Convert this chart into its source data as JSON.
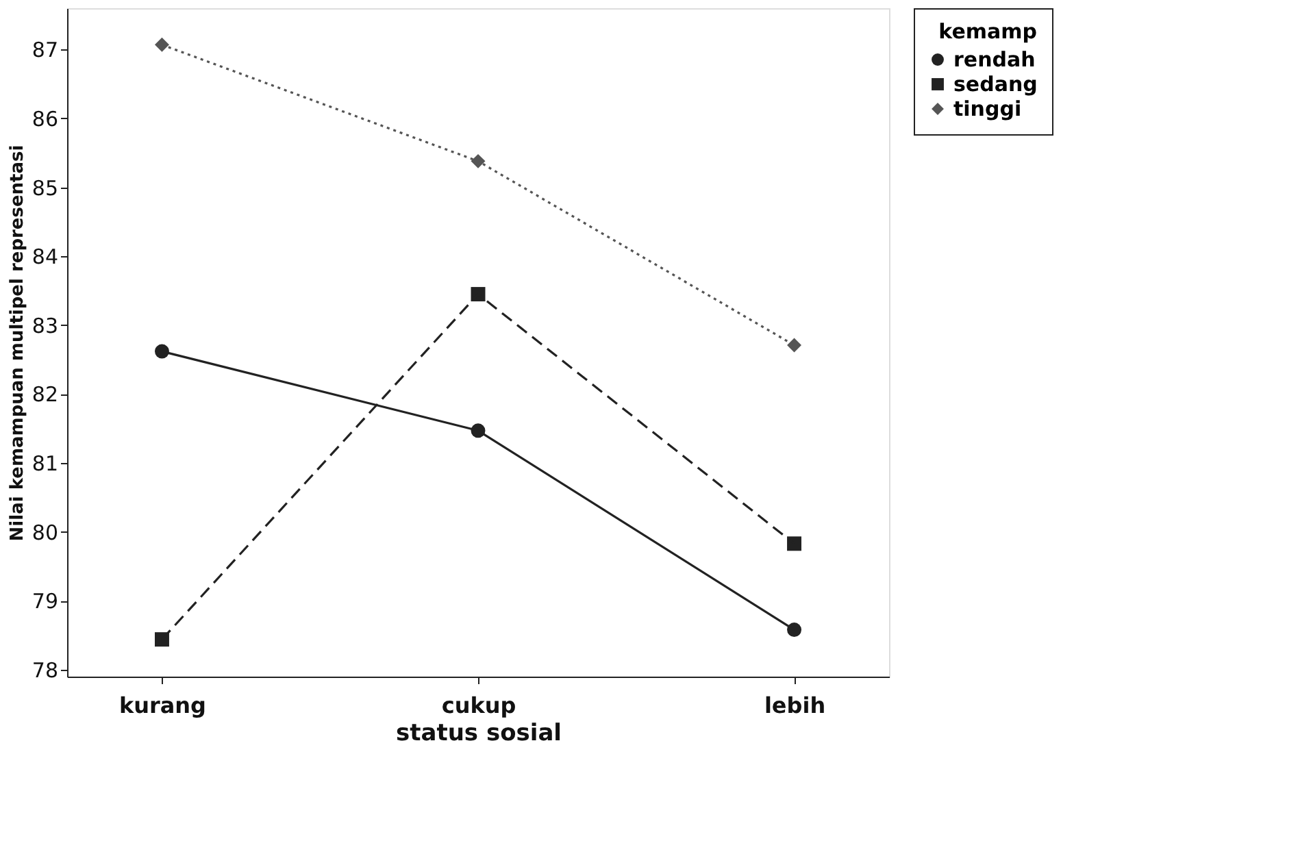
{
  "chart_data": {
    "type": "line",
    "xlabel": "status sosial",
    "ylabel": "Nilai kemampuan multipel representasi",
    "legend_title": "kemamp",
    "legend": "top right",
    "grid": false,
    "categories": [
      "kurang",
      "cukup",
      "lebih"
    ],
    "ylim": [
      77.9,
      87.6
    ],
    "yticks": [
      78,
      79,
      80,
      81,
      82,
      83,
      84,
      85,
      86,
      87
    ],
    "series": [
      {
        "name": "rendah",
        "color": "#222222",
        "marker": "circle",
        "line_style": "solid",
        "values": [
          82.62,
          81.47,
          78.58
        ]
      },
      {
        "name": "sedang",
        "color": "#222222",
        "marker": "square",
        "line_style": "dashed",
        "values": [
          78.44,
          83.45,
          79.83
        ]
      },
      {
        "name": "tinggi",
        "color": "#555555",
        "marker": "diamond",
        "line_style": "dotted",
        "values": [
          87.07,
          85.38,
          82.71
        ]
      }
    ]
  }
}
